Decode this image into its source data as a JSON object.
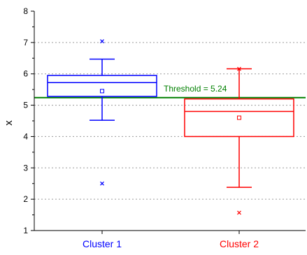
{
  "chart_data": {
    "type": "box",
    "title": "",
    "xlabel": "",
    "ylabel": "x",
    "ylim": [
      1,
      8
    ],
    "yticks": [
      1,
      2,
      3,
      4,
      5,
      6,
      7,
      8
    ],
    "grid": "horizontal-dotted",
    "categories": [
      "Cluster 1",
      "Cluster 2"
    ],
    "series": [
      {
        "name": "Cluster 1",
        "color": "#0000ff",
        "whisker_low": 4.52,
        "q1": 5.28,
        "median": 5.72,
        "q3": 5.95,
        "whisker_high": 6.47,
        "mean": 5.45,
        "outliers": [
          7.04,
          2.5
        ]
      },
      {
        "name": "Cluster 2",
        "color": "#ff0000",
        "whisker_low": 2.38,
        "q1": 4.0,
        "median": 4.8,
        "q3": 5.2,
        "whisker_high": 6.16,
        "mean": 4.6,
        "outliers": [
          6.16,
          1.57
        ]
      }
    ],
    "threshold": {
      "value": 5.24,
      "label": "Threshold = 5.24",
      "color": "#008000"
    }
  }
}
